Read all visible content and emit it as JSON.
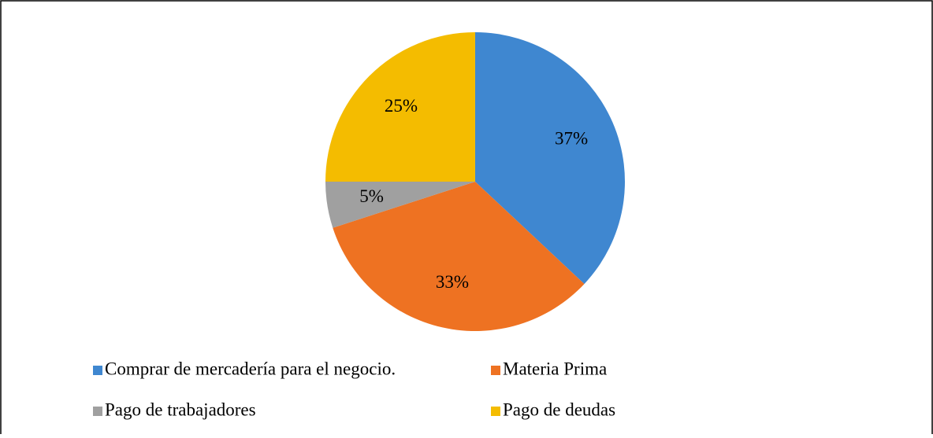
{
  "chart_data": {
    "type": "pie",
    "categories": [
      "Comprar de mercadería para el negocio.",
      "Materia Prima",
      "Pago de trabajadores",
      "Pago de deudas"
    ],
    "values": [
      37,
      33,
      5,
      25
    ],
    "value_labels": [
      "37%",
      "33%",
      "5%",
      "25%"
    ],
    "colors": [
      "#3f87d0",
      "#ee7222",
      "#a0a0a0",
      "#f4bc00"
    ],
    "legend": "bottom"
  }
}
